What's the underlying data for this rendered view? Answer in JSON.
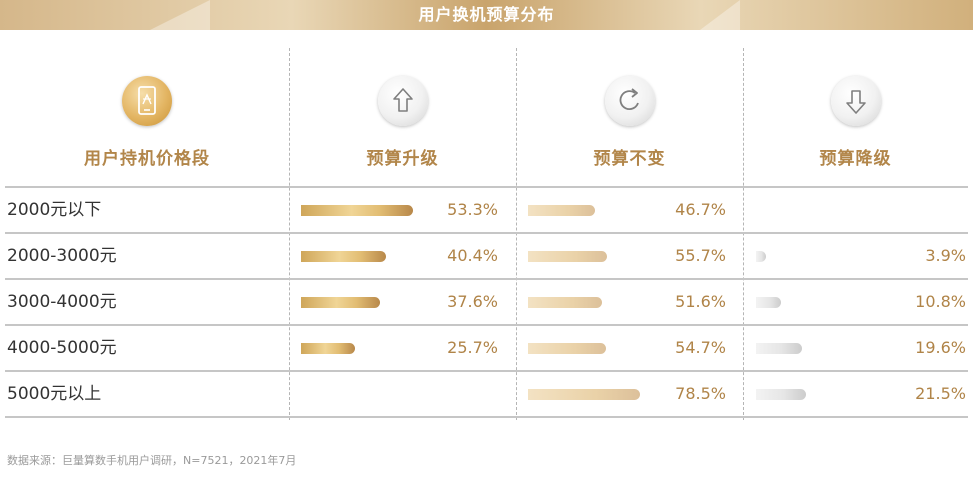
{
  "title": "用户换机预算分布",
  "header": {
    "row_label_header": "用户持机价格段",
    "icons": [
      "phone-price-icon",
      "arrow-up-icon",
      "refresh-icon",
      "arrow-down-icon"
    ]
  },
  "colors": {
    "accent_gold": "#b2864a",
    "bar_up": "#e2bd73",
    "bar_same": "#ead2a8",
    "bar_down": "#dcdcdc"
  },
  "chart_data": {
    "type": "bar",
    "title": "用户换机预算分布",
    "categories": [
      "2000元以下",
      "2000-3000元",
      "3000-4000元",
      "4000-5000元",
      "5000元以上"
    ],
    "series": [
      {
        "name": "预算升级",
        "values": [
          53.3,
          40.4,
          37.6,
          25.7,
          null
        ],
        "labels": [
          "53.3%",
          "40.4%",
          "37.6%",
          "25.7%",
          ""
        ]
      },
      {
        "name": "预算不变",
        "values": [
          46.7,
          55.7,
          51.6,
          54.7,
          78.5
        ],
        "labels": [
          "46.7%",
          "55.7%",
          "51.6%",
          "54.7%",
          "78.5%"
        ]
      },
      {
        "name": "预算降级",
        "values": [
          null,
          3.9,
          10.8,
          19.6,
          21.5
        ],
        "labels": [
          "",
          "3.9%",
          "10.8%",
          "19.6%",
          "21.5%"
        ]
      }
    ],
    "unit": "%"
  },
  "footer": {
    "source": "数据来源：巨量算数手机用户调研，N=7521，2021年7月"
  }
}
